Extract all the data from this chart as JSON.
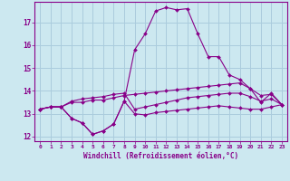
{
  "xlabel": "Windchill (Refroidissement éolien,°C)",
  "background_color": "#cce8f0",
  "grid_color": "#aaccdd",
  "line_color": "#880088",
  "x_values": [
    0,
    1,
    2,
    3,
    4,
    5,
    6,
    7,
    8,
    9,
    10,
    11,
    12,
    13,
    14,
    15,
    16,
    17,
    18,
    19,
    20,
    21,
    22,
    23
  ],
  "line1": [
    13.2,
    13.3,
    13.3,
    13.5,
    13.5,
    13.6,
    13.6,
    13.7,
    13.8,
    13.85,
    13.9,
    13.95,
    14.0,
    14.05,
    14.1,
    14.15,
    14.2,
    14.25,
    14.3,
    14.35,
    14.1,
    13.8,
    13.85,
    13.4
  ],
  "line2": [
    13.2,
    13.3,
    13.3,
    13.55,
    13.65,
    13.7,
    13.75,
    13.85,
    13.9,
    13.2,
    13.3,
    13.4,
    13.5,
    13.6,
    13.7,
    13.75,
    13.8,
    13.85,
    13.9,
    13.9,
    13.75,
    13.55,
    13.65,
    13.4
  ],
  "line3": [
    13.2,
    13.3,
    13.3,
    12.8,
    12.6,
    12.1,
    12.25,
    12.55,
    13.55,
    13.0,
    12.95,
    13.05,
    13.1,
    13.15,
    13.2,
    13.25,
    13.3,
    13.35,
    13.3,
    13.25,
    13.2,
    13.2,
    13.3,
    13.4
  ],
  "line4": [
    13.2,
    13.3,
    13.3,
    12.8,
    12.6,
    12.1,
    12.25,
    12.55,
    13.55,
    15.8,
    16.5,
    17.5,
    17.65,
    17.55,
    17.6,
    16.5,
    15.5,
    15.5,
    14.7,
    14.5,
    14.1,
    13.5,
    13.9,
    13.4
  ],
  "ylim": [
    11.8,
    17.9
  ],
  "yticks": [
    12,
    13,
    14,
    15,
    16,
    17
  ],
  "xlim": [
    -0.5,
    23.5
  ]
}
